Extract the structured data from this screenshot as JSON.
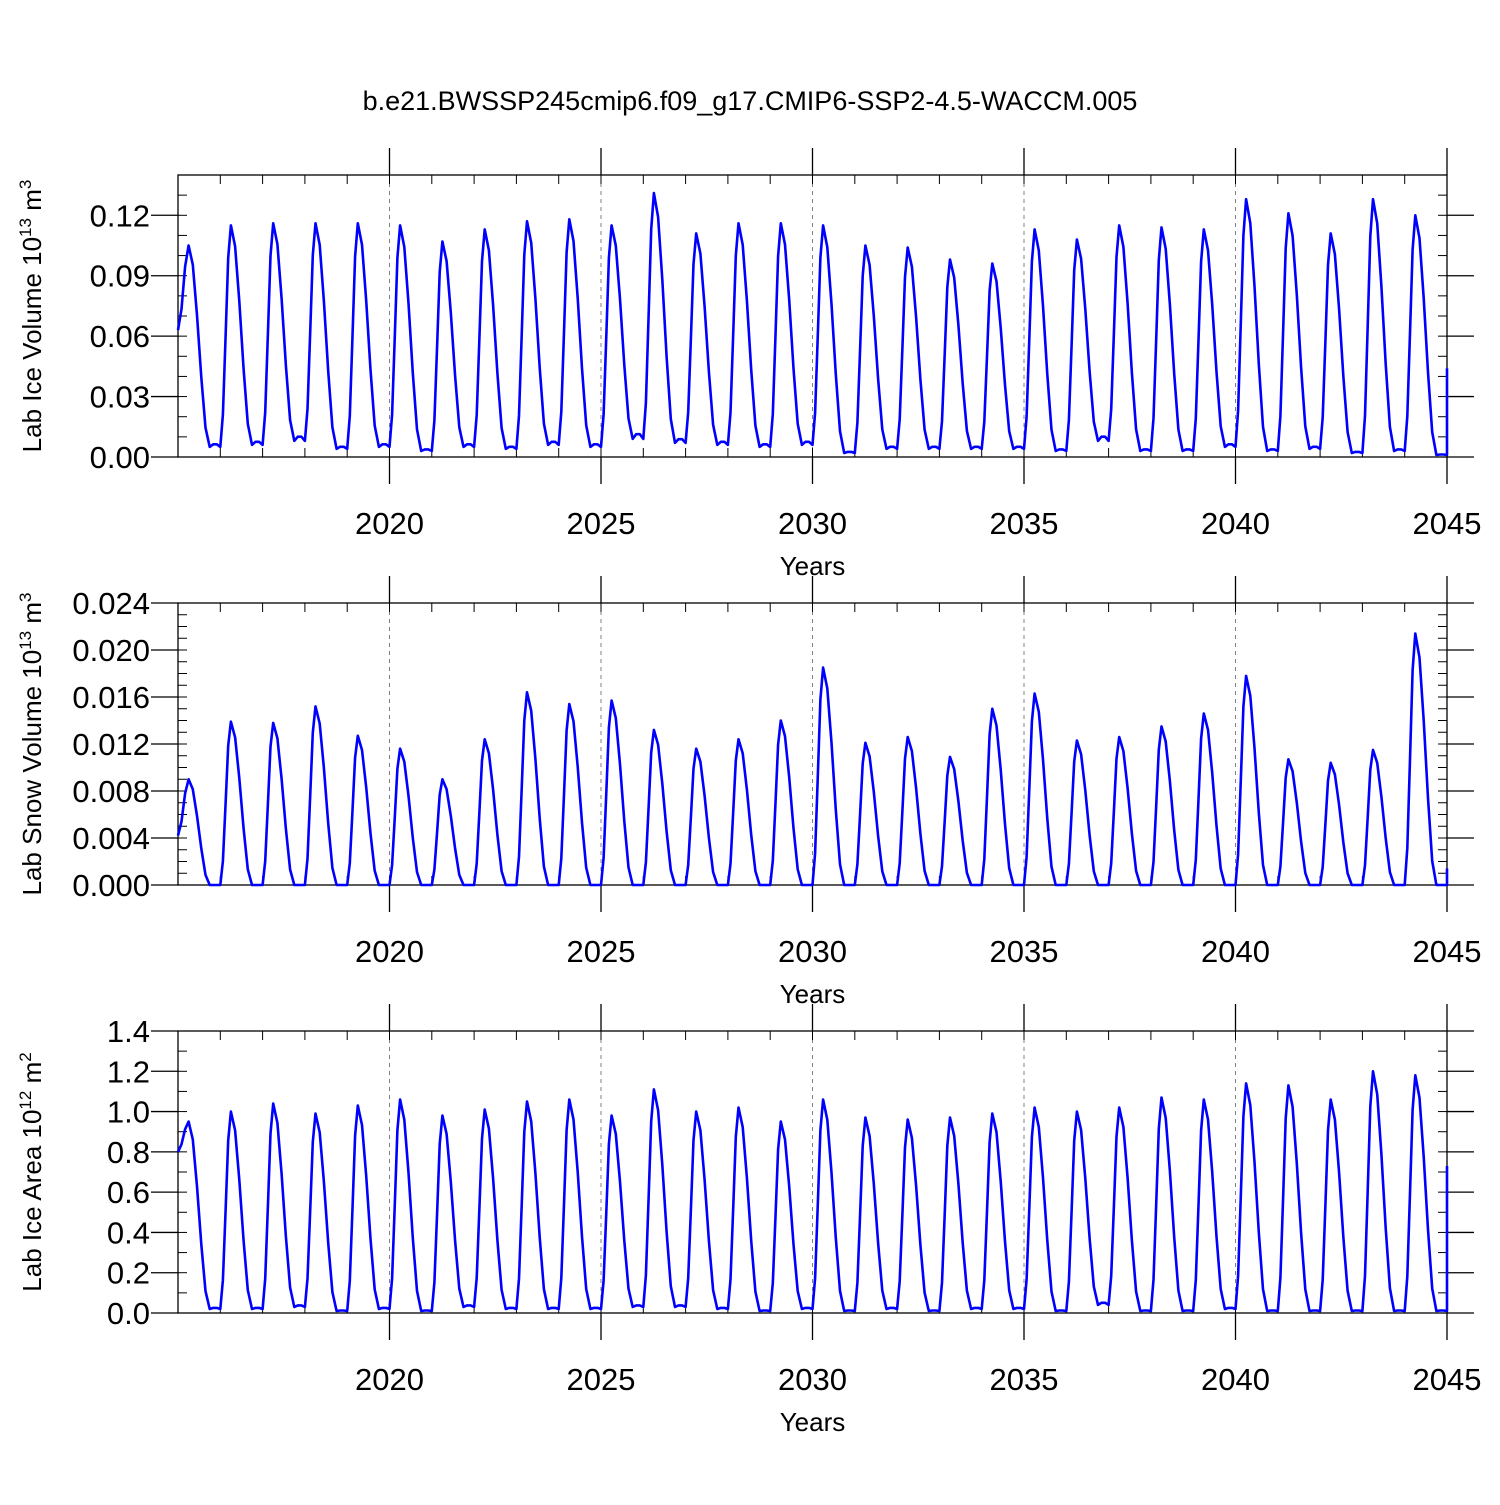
{
  "title": "b.e21.BWSSP245cmip6.f09_g17.CMIP6-SSP2-4.5-WACCM.005",
  "line_color": "#0000ff",
  "chart_data": [
    {
      "type": "line",
      "ylabel": "Lab Ice Volume 10",
      "ylabel_sup": "13",
      "ylabel_unit": " m",
      "ylabel_unit_sup": "3",
      "xlabel": "Years",
      "xlim": [
        2015.0,
        2045.0
      ],
      "ylim": [
        0,
        0.14
      ],
      "yticks": [
        0,
        0.03,
        0.06,
        0.09,
        0.12
      ],
      "ytick_labels": [
        "0.00",
        "0.03",
        "0.06",
        "0.09",
        "0.12"
      ],
      "yminor_step": 0.01,
      "xticks": [
        2020,
        2025,
        2030,
        2035,
        2040,
        2045
      ],
      "xtick_labels": [
        "2020",
        "2025",
        "2030",
        "2035",
        "2040",
        "2045"
      ],
      "grid": "dashed vertical at major x ticks",
      "series": [
        {
          "name": "Lab Ice Volume",
          "peaks": [
            0.105,
            0.115,
            0.116,
            0.116,
            0.116,
            0.115,
            0.107,
            0.113,
            0.117,
            0.118,
            0.115,
            0.131,
            0.111,
            0.116,
            0.116,
            0.115,
            0.105,
            0.104,
            0.098,
            0.096,
            0.113,
            0.108,
            0.115,
            0.114,
            0.113,
            0.128,
            0.121,
            0.111,
            0.128,
            0.12
          ],
          "troughs": [
            0.005,
            0.006,
            0.008,
            0.004,
            0.005,
            0.003,
            0.005,
            0.004,
            0.006,
            0.005,
            0.009,
            0.007,
            0.006,
            0.005,
            0.006,
            0.002,
            0.004,
            0.004,
            0.004,
            0.004,
            0.003,
            0.008,
            0.003,
            0.003,
            0.005,
            0.003,
            0.004,
            0.002,
            0.003,
            0.001
          ],
          "start": 0.063,
          "end": 0.044
        }
      ]
    },
    {
      "type": "line",
      "ylabel": "Lab Snow Volume 10",
      "ylabel_sup": "13",
      "ylabel_unit": " m",
      "ylabel_unit_sup": "3",
      "xlabel": "Years",
      "xlim": [
        2015.0,
        2045.0
      ],
      "ylim": [
        0,
        0.024
      ],
      "yticks": [
        0,
        0.004,
        0.008,
        0.012,
        0.016,
        0.02,
        0.024
      ],
      "ytick_labels": [
        "0.000",
        "0.004",
        "0.008",
        "0.012",
        "0.016",
        "0.020",
        "0.024"
      ],
      "yminor_step": 0.001,
      "xticks": [
        2020,
        2025,
        2030,
        2035,
        2040,
        2045
      ],
      "xtick_labels": [
        "2020",
        "2025",
        "2030",
        "2035",
        "2040",
        "2045"
      ],
      "grid": "dashed vertical at major x ticks",
      "series": [
        {
          "name": "Lab Snow Volume",
          "peaks": [
            0.009,
            0.0139,
            0.0138,
            0.0152,
            0.0127,
            0.0116,
            0.009,
            0.0124,
            0.0164,
            0.0154,
            0.0157,
            0.0132,
            0.0116,
            0.0124,
            0.014,
            0.0185,
            0.0121,
            0.0126,
            0.0109,
            0.015,
            0.0163,
            0.0123,
            0.0126,
            0.0135,
            0.0146,
            0.0178,
            0.0107,
            0.0104,
            0.0115,
            0.0214
          ],
          "troughs": [
            0.0,
            0.0,
            0.0,
            0.0,
            0.0,
            0.0,
            0.0,
            0.0,
            0.0,
            0.0,
            0.0,
            0.0,
            0.0,
            0.0,
            0.0,
            0.0,
            0.0,
            0.0,
            0.0,
            0.0,
            0.0,
            0.0,
            0.0,
            0.0,
            0.0,
            0.0,
            0.0,
            0.0,
            0.0,
            0.0
          ],
          "start": 0.0042,
          "end": 0.0014
        }
      ]
    },
    {
      "type": "line",
      "ylabel": "Lab Ice Area 10",
      "ylabel_sup": "12",
      "ylabel_unit": " m",
      "ylabel_unit_sup": "2",
      "xlabel": "Years",
      "xlim": [
        2015.0,
        2045.0
      ],
      "ylim": [
        0,
        1.4
      ],
      "yticks": [
        0,
        0.2,
        0.4,
        0.6,
        0.8,
        1.0,
        1.2,
        1.4
      ],
      "ytick_labels": [
        "0.0",
        "0.2",
        "0.4",
        "0.6",
        "0.8",
        "1.0",
        "1.2",
        "1.4"
      ],
      "yminor_step": 0.1,
      "xticks": [
        2020,
        2025,
        2030,
        2035,
        2040,
        2045
      ],
      "xtick_labels": [
        "2020",
        "2025",
        "2030",
        "2035",
        "2040",
        "2045"
      ],
      "grid": "dashed vertical at major x ticks",
      "series": [
        {
          "name": "Lab Ice Area",
          "peaks": [
            0.95,
            1.0,
            1.04,
            0.99,
            1.03,
            1.06,
            0.98,
            1.01,
            1.05,
            1.06,
            0.98,
            1.11,
            1.0,
            1.02,
            0.95,
            1.06,
            0.97,
            0.96,
            0.97,
            0.99,
            1.02,
            1.0,
            1.02,
            1.07,
            1.06,
            1.14,
            1.13,
            1.06,
            1.2,
            1.18
          ],
          "troughs": [
            0.02,
            0.02,
            0.03,
            0.01,
            0.02,
            0.01,
            0.03,
            0.02,
            0.02,
            0.02,
            0.03,
            0.03,
            0.02,
            0.01,
            0.02,
            0.01,
            0.02,
            0.01,
            0.02,
            0.02,
            0.01,
            0.04,
            0.01,
            0.01,
            0.02,
            0.01,
            0.01,
            0.01,
            0.01,
            0.01
          ],
          "start": 0.8,
          "end": 0.73
        }
      ]
    }
  ]
}
